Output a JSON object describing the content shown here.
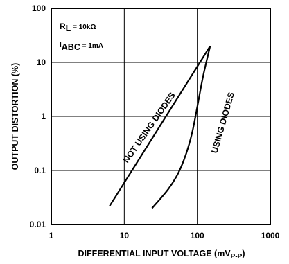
{
  "chart_data": {
    "type": "line",
    "xscale": "log",
    "yscale": "log",
    "xlim": [
      1,
      1000
    ],
    "ylim": [
      0.01,
      100
    ],
    "xlabel": "DIFFERENTIAL INPUT VOLTAGE (mV",
    "xlabel_sub": "P-P",
    "xlabel_close": ")",
    "ylabel": "OUTPUT DISTORTION (%)",
    "x_ticks": [
      1,
      10,
      100,
      1000
    ],
    "x_tick_labels": [
      "1",
      "10",
      "100",
      "1000"
    ],
    "y_ticks": [
      0.01,
      0.1,
      1,
      10,
      100
    ],
    "y_tick_labels": [
      "0.01",
      "0.1",
      "1",
      "10",
      "100"
    ],
    "grid": true,
    "annotations": {
      "rl_main": "R",
      "rl_sub": "L",
      "rl_value": " = 10kΩ",
      "iabc_main": "I",
      "iabc_sub": "ABC",
      "iabc_value": " = 1mA"
    },
    "series": [
      {
        "name": "NOT USING DIODES",
        "x": [
          6.3,
          150
        ],
        "y": [
          0.022,
          20
        ]
      },
      {
        "name": "USING DIODES",
        "x": [
          24,
          40,
          55,
          70,
          85,
          100,
          120,
          150
        ],
        "y": [
          0.02,
          0.045,
          0.09,
          0.2,
          0.5,
          1.5,
          5.5,
          20
        ]
      }
    ]
  }
}
